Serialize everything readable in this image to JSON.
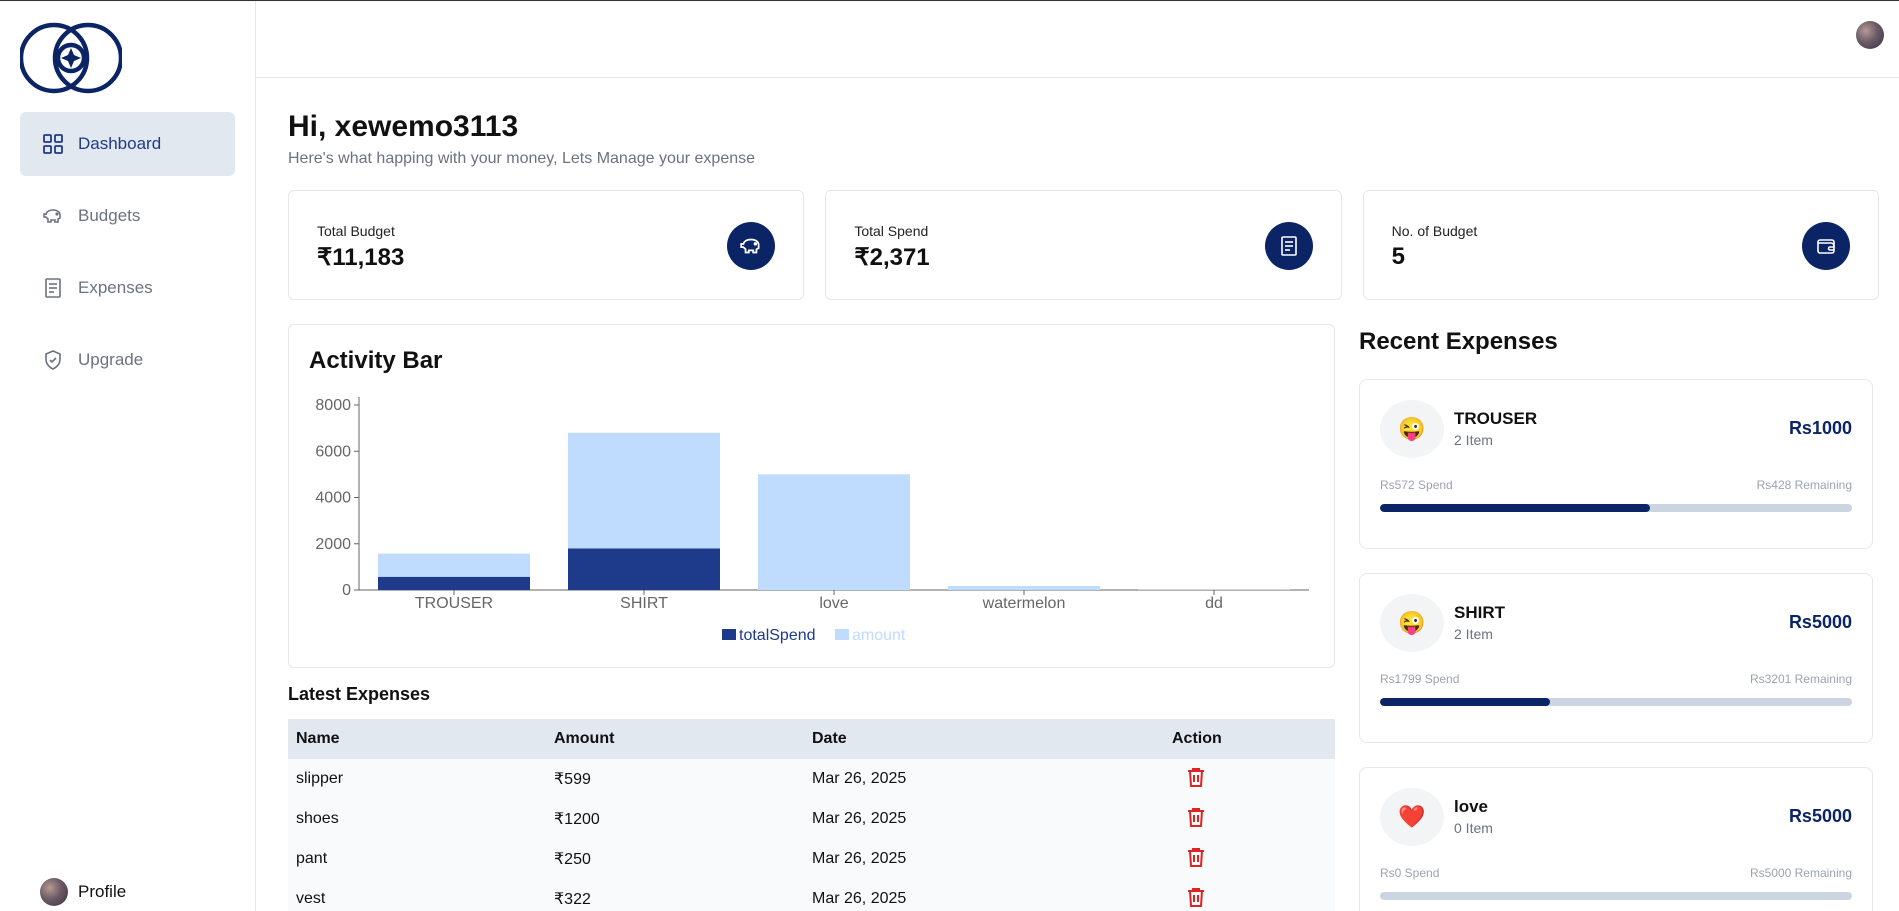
{
  "sidebar": {
    "items": [
      {
        "label": "Dashboard",
        "icon": "grid-icon",
        "active": true
      },
      {
        "label": "Budgets",
        "icon": "piggy-bank-icon",
        "active": false
      },
      {
        "label": "Expenses",
        "icon": "receipt-icon",
        "active": false
      },
      {
        "label": "Upgrade",
        "icon": "shield-check-icon",
        "active": false
      }
    ],
    "profile_label": "Profile"
  },
  "main": {
    "greeting": "Hi, xewemo3113",
    "subtitle": "Here's what happing with your money, Lets Manage your expense"
  },
  "cards": [
    {
      "label": "Total Budget",
      "value": "₹11,183",
      "icon": "piggy-bank-icon"
    },
    {
      "label": "Total Spend",
      "value": "₹2,371",
      "icon": "receipt-icon"
    },
    {
      "label": "No. of Budget",
      "value": "5",
      "icon": "wallet-icon"
    }
  ],
  "colors": {
    "accent": "#0b2466",
    "totalSpend": "#1e3a8a",
    "amount": "#bfdbfe",
    "danger": "#dc2626"
  },
  "chart_data": {
    "type": "bar",
    "title": "Activity Bar",
    "categories": [
      "TROUSER",
      "SHIRT",
      "love",
      "watermelon",
      "dd"
    ],
    "series": [
      {
        "name": "totalSpend",
        "values": [
          572,
          1799,
          0,
          0,
          0
        ]
      },
      {
        "name": "amount",
        "values": [
          1000,
          5000,
          5000,
          170,
          13
        ]
      }
    ],
    "stacked": true,
    "yticks": [
      0,
      2000,
      4000,
      6000,
      8000
    ],
    "ylim": [
      0,
      8000
    ],
    "legend": "bottom",
    "grid": false
  },
  "latest": {
    "title": "Latest Expenses",
    "headers": [
      "Name",
      "Amount",
      "Date",
      "Action"
    ],
    "rows": [
      {
        "name": "slipper",
        "amount": "₹599",
        "date": "Mar 26, 2025"
      },
      {
        "name": "shoes",
        "amount": "₹1200",
        "date": "Mar 26, 2025"
      },
      {
        "name": "pant",
        "amount": "₹250",
        "date": "Mar 26, 2025"
      },
      {
        "name": "vest",
        "amount": "₹322",
        "date": "Mar 26, 2025"
      }
    ]
  },
  "recent": {
    "title": "Recent Expenses",
    "items": [
      {
        "emoji": "😜",
        "name": "TROUSER",
        "items": "2 Item",
        "amount": "Rs1000",
        "spend": "Rs572 Spend",
        "remaining": "Rs428 Remaining",
        "progress": 0.572
      },
      {
        "emoji": "😜",
        "name": "SHIRT",
        "items": "2 Item",
        "amount": "Rs5000",
        "spend": "Rs1799 Spend",
        "remaining": "Rs3201 Remaining",
        "progress": 0.36
      },
      {
        "emoji": "❤️",
        "name": "love",
        "items": "0 Item",
        "amount": "Rs5000",
        "spend": "Rs0 Spend",
        "remaining": "Rs5000 Remaining",
        "progress": 0
      }
    ]
  }
}
